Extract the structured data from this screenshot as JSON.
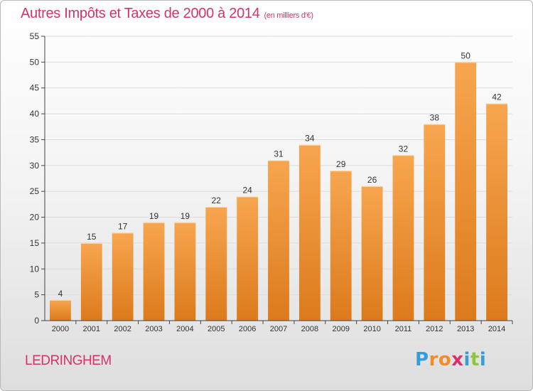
{
  "title": "Autres Impôts et Taxes de 2000 à 2014",
  "unit": "(en milliers d'€)",
  "commune": "LEDRINGHEM",
  "logo": {
    "text": "Proxiti",
    "letter_colors": [
      "#3a9bd9",
      "#f28c28",
      "#f28c28",
      "#d6336c",
      "#3a9bd9",
      "#8cc63f",
      "#3a9bd9"
    ]
  },
  "colors": {
    "title": "#d6336c",
    "bar_light": "#f7a64f",
    "bar_dark": "#dc7a1c",
    "grid": "#dcdcdc",
    "axis": "#444444"
  },
  "chart_data": {
    "type": "bar",
    "categories": [
      "2000",
      "2001",
      "2002",
      "2003",
      "2004",
      "2005",
      "2006",
      "2007",
      "2008",
      "2009",
      "2010",
      "2011",
      "2012",
      "2013",
      "2014"
    ],
    "values": [
      4,
      15,
      17,
      19,
      19,
      22,
      24,
      31,
      34,
      29,
      26,
      32,
      38,
      50,
      42
    ],
    "ylim": [
      0,
      55
    ],
    "yticks": [
      0,
      5,
      10,
      15,
      20,
      25,
      30,
      35,
      40,
      45,
      50,
      55
    ],
    "grid": true,
    "data_labels": true
  }
}
